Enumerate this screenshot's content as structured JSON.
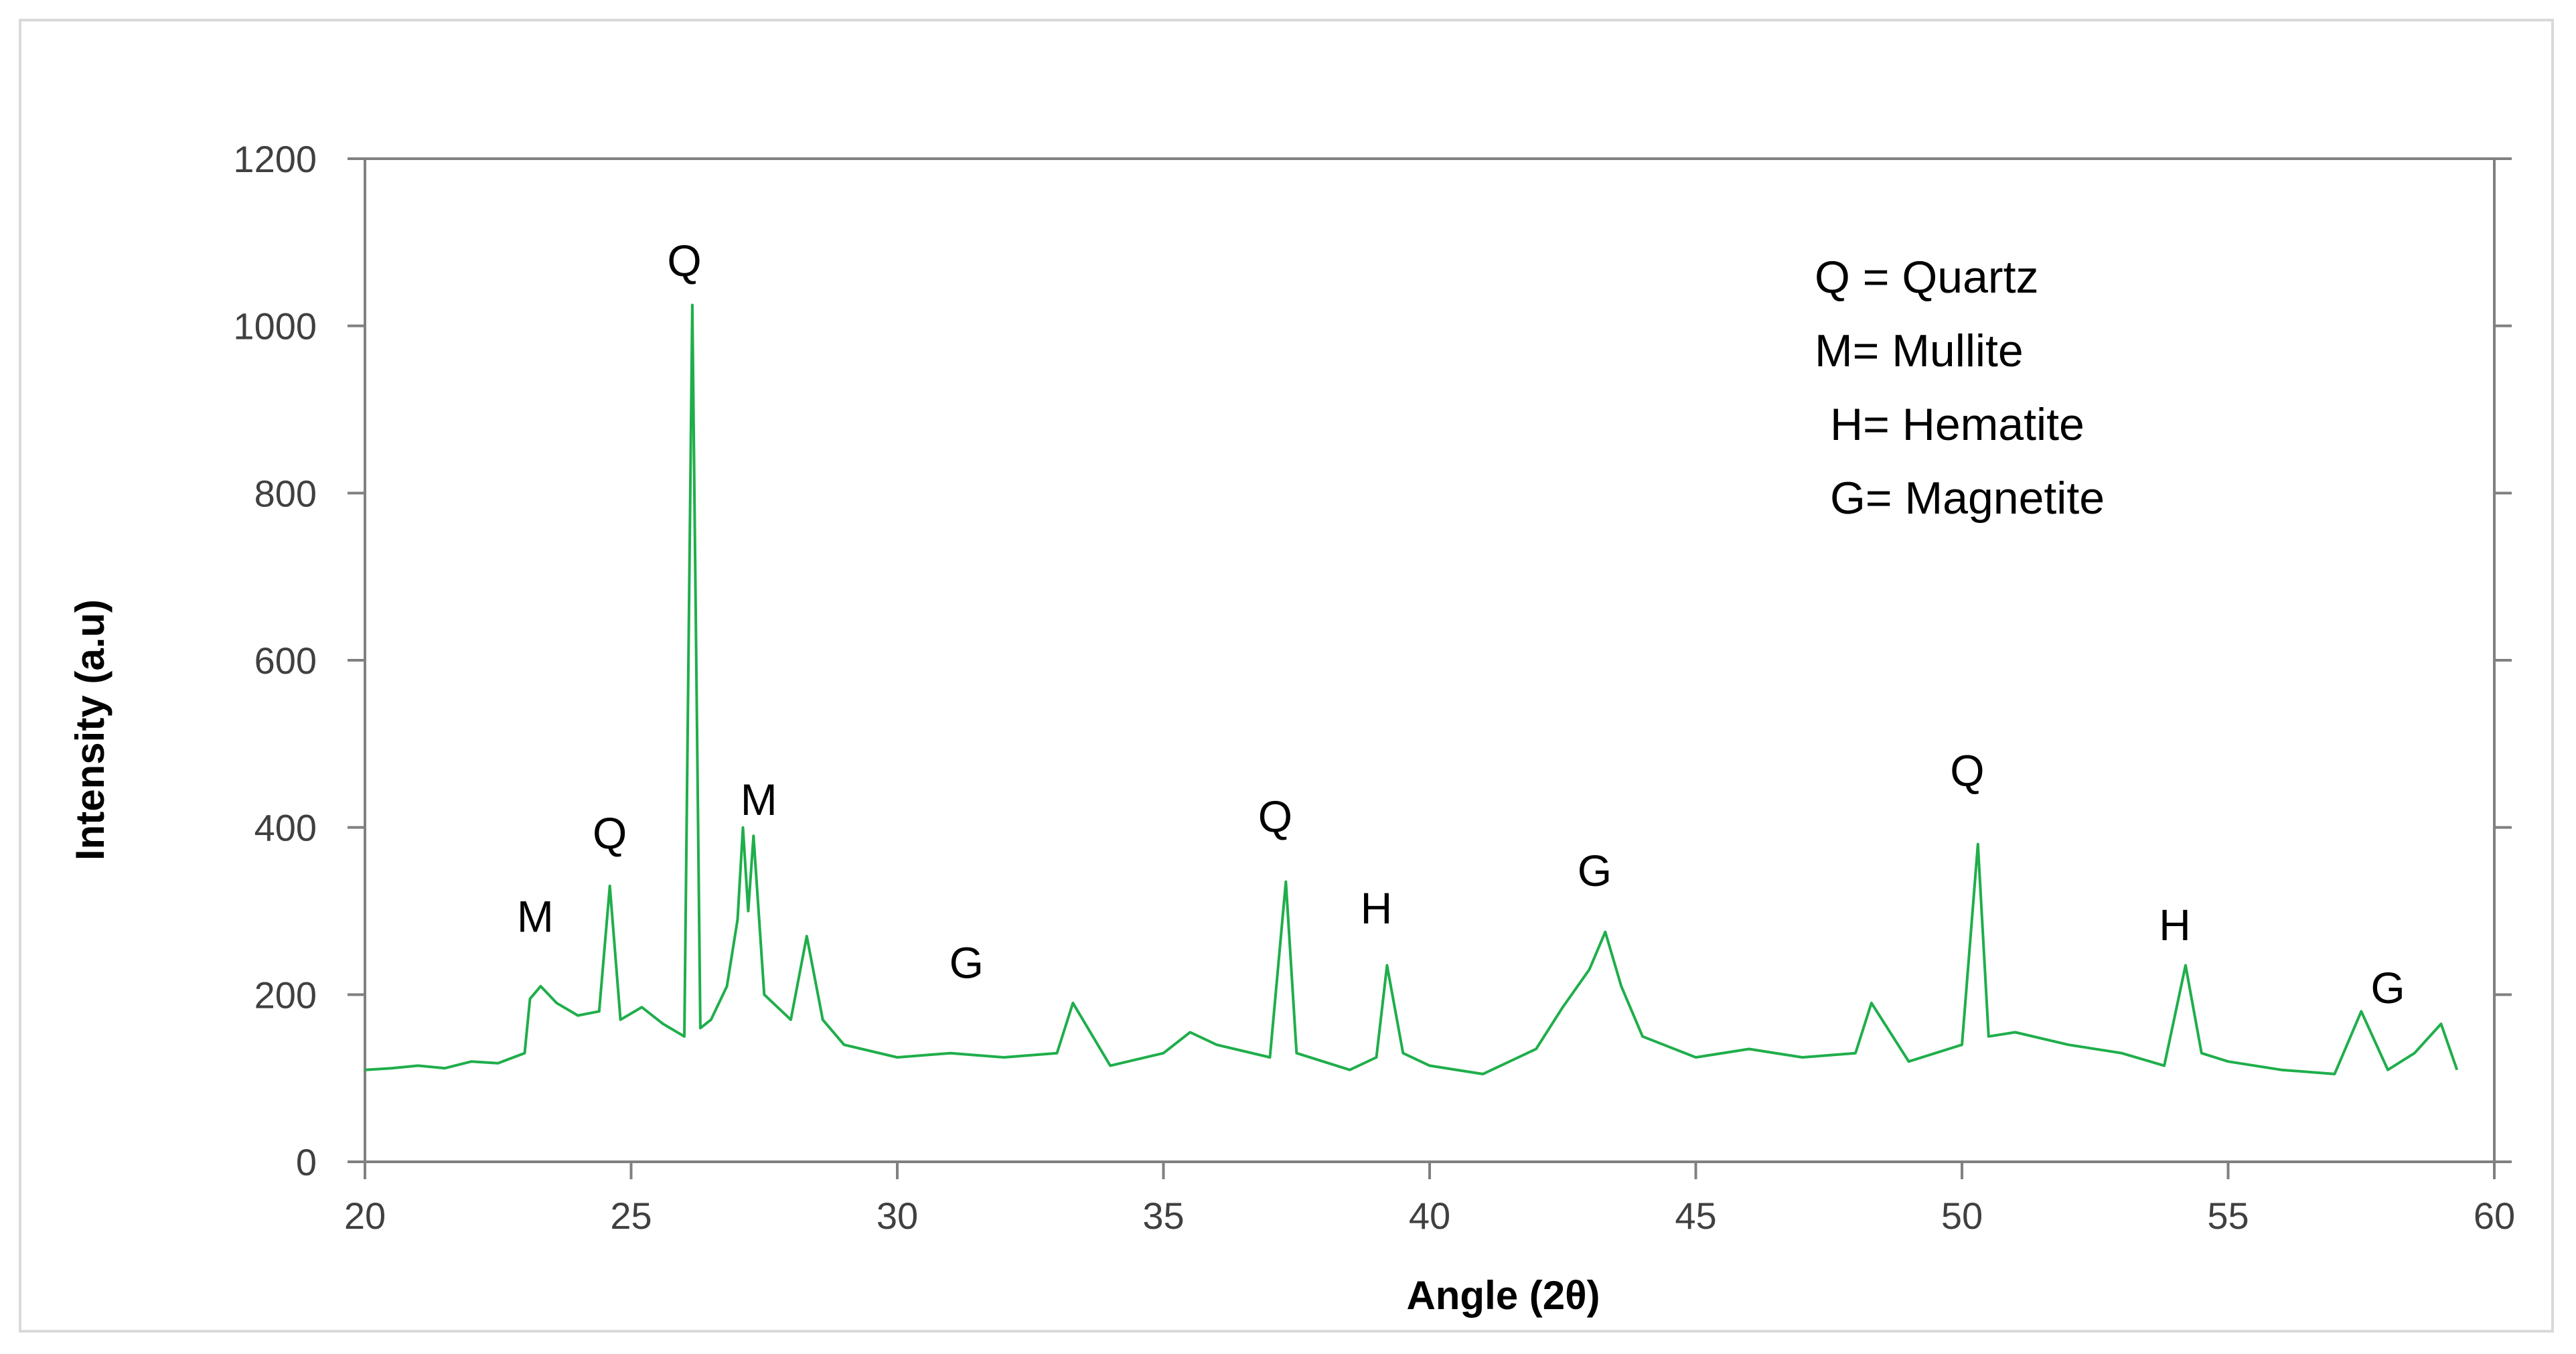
{
  "chart_data": {
    "type": "line",
    "title": "",
    "xlabel": "Angle (2θ)",
    "ylabel": "Intensity (a.u)",
    "xlim": [
      20,
      60
    ],
    "ylim": [
      0,
      1200
    ],
    "x_ticks": [
      "20",
      "25",
      "30",
      "35",
      "40",
      "45",
      "50",
      "55",
      "60"
    ],
    "y_ticks": [
      "0",
      "200",
      "400",
      "600",
      "800",
      "1000",
      "1200"
    ],
    "grid": false,
    "colors": {
      "series": "#1fae4b",
      "axis": "#808080"
    },
    "legend_entries": [
      "Q = Quartz",
      "M= Mullite",
      "H= Hematite",
      "G=  Magnetite"
    ],
    "annotations": [
      {
        "label": "M",
        "x": 23.2,
        "y": 275
      },
      {
        "label": "Q",
        "x": 24.6,
        "y": 375
      },
      {
        "label": "Q",
        "x": 26.0,
        "y": 1060
      },
      {
        "label": "M",
        "x": 27.4,
        "y": 415
      },
      {
        "label": "G",
        "x": 31.3,
        "y": 220
      },
      {
        "label": "Q",
        "x": 37.1,
        "y": 395
      },
      {
        "label": "H",
        "x": 39.0,
        "y": 285
      },
      {
        "label": "G",
        "x": 43.1,
        "y": 330
      },
      {
        "label": "Q",
        "x": 50.1,
        "y": 450
      },
      {
        "label": "H",
        "x": 54.0,
        "y": 265
      },
      {
        "label": "G",
        "x": 58.0,
        "y": 190
      }
    ],
    "series": [
      {
        "x": [
          20.0,
          20.5,
          21.0,
          21.5,
          22.0,
          22.5,
          23.0,
          23.1,
          23.3,
          23.6,
          24.0,
          24.4,
          24.6,
          24.8,
          25.2,
          25.6,
          26.0,
          26.15,
          26.3,
          26.5,
          26.8,
          27.0,
          27.1,
          27.2,
          27.3,
          27.5,
          28.0,
          28.3,
          28.6,
          29.0,
          30.0,
          31.0,
          32.0,
          33.0,
          33.3,
          34.0,
          35.0,
          35.5,
          36.0,
          37.0,
          37.3,
          37.5,
          38.0,
          38.5,
          39.0,
          39.2,
          39.5,
          40.0,
          41.0,
          42.0,
          42.5,
          43.0,
          43.3,
          43.6,
          44.0,
          45.0,
          46.0,
          47.0,
          48.0,
          48.3,
          49.0,
          50.0,
          50.3,
          50.5,
          51.0,
          52.0,
          53.0,
          53.8,
          54.2,
          54.5,
          55.0,
          56.0,
          57.0,
          57.5,
          58.0,
          58.5,
          59.0,
          59.3
        ],
        "y": [
          110,
          112,
          115,
          112,
          120,
          118,
          130,
          195,
          210,
          190,
          175,
          180,
          330,
          170,
          185,
          165,
          150,
          1025,
          160,
          170,
          210,
          290,
          400,
          300,
          390,
          200,
          170,
          270,
          170,
          140,
          125,
          130,
          125,
          130,
          190,
          115,
          130,
          155,
          140,
          125,
          335,
          130,
          120,
          110,
          125,
          235,
          130,
          115,
          105,
          135,
          185,
          230,
          275,
          210,
          150,
          125,
          135,
          125,
          130,
          190,
          120,
          140,
          380,
          150,
          155,
          140,
          130,
          115,
          235,
          130,
          120,
          110,
          105,
          180,
          110,
          130,
          165,
          110
        ]
      }
    ]
  }
}
